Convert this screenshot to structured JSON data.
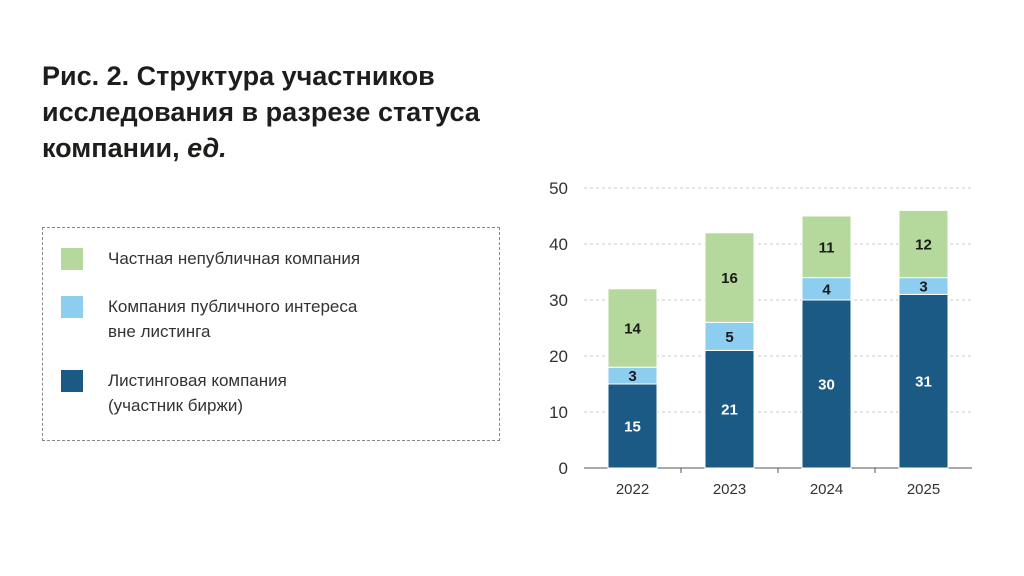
{
  "title": {
    "main": "Рис. 2. Структура участников исследования в разрезе статуса компании,",
    "unit": "ед."
  },
  "colors": {
    "private": "#b5d99c",
    "public_interest": "#8dcdf0",
    "listed": "#1a5a84",
    "grid": "#c8c8c8",
    "axis": "#555555"
  },
  "legend": {
    "items": [
      {
        "key": "private",
        "lines": [
          "Частная непубличная компания"
        ]
      },
      {
        "key": "public_interest",
        "lines": [
          "Компания публичного интереса",
          "вне листинга"
        ]
      },
      {
        "key": "listed",
        "lines": [
          "Листинговая компания",
          "(участник биржи)"
        ]
      }
    ]
  },
  "chart_data": {
    "type": "bar",
    "stacked": true,
    "categories": [
      "2022",
      "2023",
      "2024",
      "2025"
    ],
    "series": [
      {
        "name": "Листинговая компания (участник биржи)",
        "key": "listed",
        "values": [
          15,
          21,
          30,
          31
        ]
      },
      {
        "name": "Компания публичного интереса вне листинга",
        "key": "public_interest",
        "values": [
          3,
          5,
          4,
          3
        ]
      },
      {
        "name": "Частная непубличная компания",
        "key": "private",
        "values": [
          14,
          16,
          11,
          12
        ]
      }
    ],
    "yticks": [
      0,
      10,
      20,
      30,
      40,
      50
    ],
    "ylim": [
      0,
      50
    ],
    "grid": true,
    "title": "Рис. 2. Структура участников исследования в разрезе статуса компании, ед.",
    "xlabel": "",
    "ylabel": ""
  }
}
